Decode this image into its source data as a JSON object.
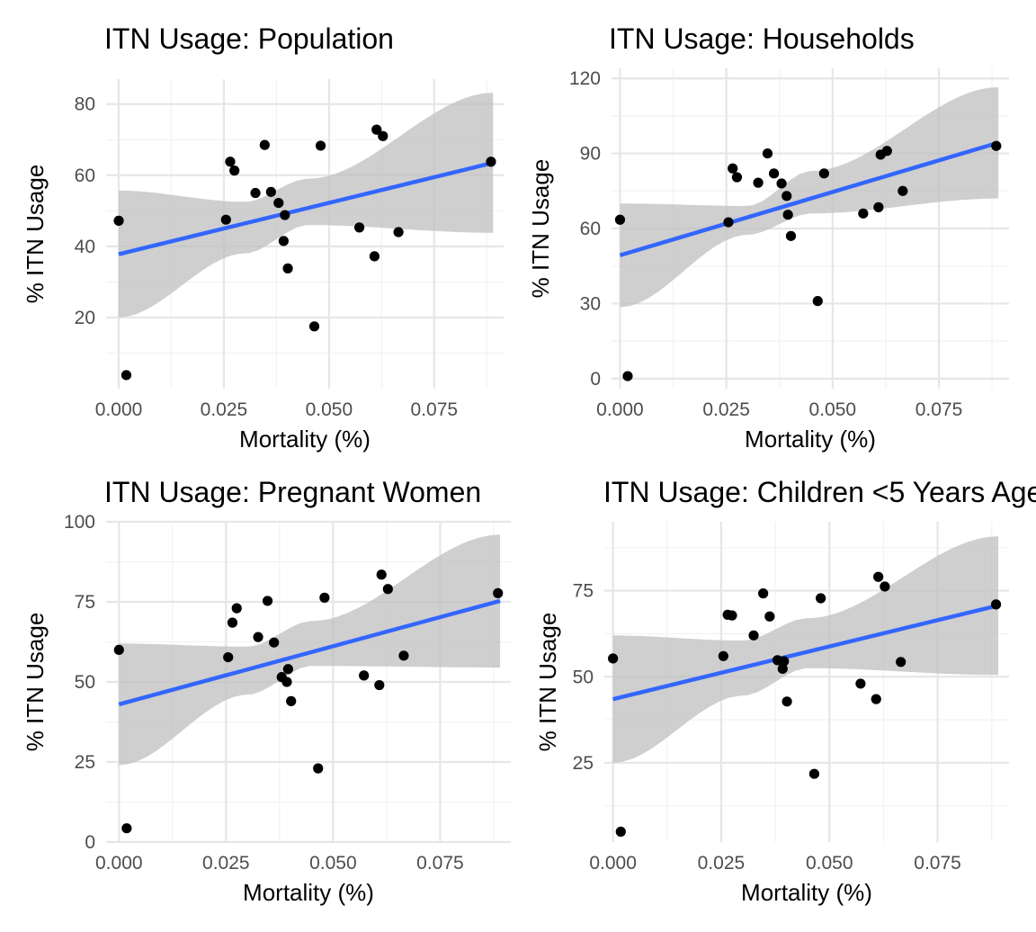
{
  "chart_data": [
    {
      "type": "scatter",
      "title": "ITN Usage: Population",
      "xlabel": "Mortality (%)",
      "ylabel": "% ITN Usage",
      "xlim": [
        -0.003,
        0.0915
      ],
      "ylim": [
        0,
        87
      ],
      "xticks": [
        0.0,
        0.025,
        0.05,
        0.075
      ],
      "xtick_labels": [
        "0.000",
        "0.025",
        "0.050",
        "0.075"
      ],
      "yticks": [
        20,
        40,
        60,
        80
      ],
      "ytick_labels": [
        "20",
        "40",
        "60",
        "80"
      ],
      "grid": true,
      "points": [
        {
          "x": 0.0,
          "y": 47.2
        },
        {
          "x": 0.0018,
          "y": 3.8
        },
        {
          "x": 0.0255,
          "y": 47.5
        },
        {
          "x": 0.0265,
          "y": 63.8
        },
        {
          "x": 0.0275,
          "y": 61.3
        },
        {
          "x": 0.0325,
          "y": 55.0
        },
        {
          "x": 0.0347,
          "y": 68.5
        },
        {
          "x": 0.0362,
          "y": 55.3
        },
        {
          "x": 0.038,
          "y": 52.2
        },
        {
          "x": 0.0392,
          "y": 41.5
        },
        {
          "x": 0.0395,
          "y": 48.8
        },
        {
          "x": 0.0402,
          "y": 33.8
        },
        {
          "x": 0.0465,
          "y": 17.5
        },
        {
          "x": 0.048,
          "y": 68.3
        },
        {
          "x": 0.0572,
          "y": 45.3
        },
        {
          "x": 0.0608,
          "y": 37.2
        },
        {
          "x": 0.0613,
          "y": 72.8
        },
        {
          "x": 0.0628,
          "y": 71.0
        },
        {
          "x": 0.0665,
          "y": 44.0
        },
        {
          "x": 0.0885,
          "y": 63.8
        }
      ],
      "fit": {
        "x0": 0.0,
        "y0": 37.8,
        "x1": 0.089,
        "y1": 63.5
      },
      "band": {
        "upper": [
          55.7,
          52.5,
          59.0,
          83.2
        ],
        "lower": [
          20.0,
          38.0,
          46.0,
          43.8
        ]
      }
    },
    {
      "type": "scatter",
      "title": "ITN Usage: Households",
      "xlabel": "Mortality (%)",
      "ylabel": "% ITN Usage",
      "xlim": [
        -0.002,
        0.0915
      ],
      "ylim": [
        -4,
        124
      ],
      "xticks": [
        0.0,
        0.025,
        0.05,
        0.075
      ],
      "xtick_labels": [
        "0.000",
        "0.025",
        "0.050",
        "0.075"
      ],
      "yticks": [
        0,
        30,
        60,
        90,
        120
      ],
      "ytick_labels": [
        "0",
        "30",
        "60",
        "90",
        "120"
      ],
      "grid": true,
      "points": [
        {
          "x": 0.0,
          "y": 63.5
        },
        {
          "x": 0.0018,
          "y": 1.0
        },
        {
          "x": 0.0255,
          "y": 62.5
        },
        {
          "x": 0.0265,
          "y": 84.0
        },
        {
          "x": 0.0275,
          "y": 80.5
        },
        {
          "x": 0.0325,
          "y": 78.3
        },
        {
          "x": 0.0347,
          "y": 90.0
        },
        {
          "x": 0.0362,
          "y": 82.0
        },
        {
          "x": 0.038,
          "y": 78.0
        },
        {
          "x": 0.0392,
          "y": 73.0
        },
        {
          "x": 0.0395,
          "y": 65.5
        },
        {
          "x": 0.0402,
          "y": 57.0
        },
        {
          "x": 0.0465,
          "y": 31.0
        },
        {
          "x": 0.048,
          "y": 82.0
        },
        {
          "x": 0.0572,
          "y": 66.0
        },
        {
          "x": 0.0608,
          "y": 68.5
        },
        {
          "x": 0.0613,
          "y": 89.5
        },
        {
          "x": 0.0628,
          "y": 91.0
        },
        {
          "x": 0.0665,
          "y": 75.0
        },
        {
          "x": 0.0885,
          "y": 93.0
        }
      ],
      "fit": {
        "x0": 0.0,
        "y0": 49.3,
        "x1": 0.089,
        "y1": 94.3
      },
      "band": {
        "upper": [
          70.0,
          69.0,
          83.0,
          116.5
        ],
        "lower": [
          28.5,
          57.5,
          66.0,
          72.0
        ]
      }
    },
    {
      "type": "scatter",
      "title": "ITN Usage: Pregnant Women",
      "xlabel": "Mortality (%)",
      "ylabel": "% ITN Usage",
      "xlim": [
        -0.003,
        0.0915
      ],
      "ylim": [
        0,
        100
      ],
      "xticks": [
        0.0,
        0.025,
        0.05,
        0.075
      ],
      "xtick_labels": [
        "0.000",
        "0.025",
        "0.050",
        "0.075"
      ],
      "yticks": [
        0,
        25,
        50,
        75,
        100
      ],
      "ytick_labels": [
        "0",
        "25",
        "50",
        "75",
        "100"
      ],
      "grid": true,
      "points": [
        {
          "x": 0.0,
          "y": 60.0
        },
        {
          "x": 0.0018,
          "y": 4.3
        },
        {
          "x": 0.0255,
          "y": 57.7
        },
        {
          "x": 0.0265,
          "y": 68.5
        },
        {
          "x": 0.0275,
          "y": 73.0
        },
        {
          "x": 0.0325,
          "y": 64.0
        },
        {
          "x": 0.0347,
          "y": 75.3
        },
        {
          "x": 0.0362,
          "y": 62.3
        },
        {
          "x": 0.038,
          "y": 51.5
        },
        {
          "x": 0.0392,
          "y": 50.0
        },
        {
          "x": 0.0395,
          "y": 54.0
        },
        {
          "x": 0.0402,
          "y": 44.0
        },
        {
          "x": 0.0465,
          "y": 23.0
        },
        {
          "x": 0.048,
          "y": 76.3
        },
        {
          "x": 0.0572,
          "y": 52.0
        },
        {
          "x": 0.0608,
          "y": 49.0
        },
        {
          "x": 0.0613,
          "y": 83.5
        },
        {
          "x": 0.0628,
          "y": 79.0
        },
        {
          "x": 0.0665,
          "y": 58.2
        },
        {
          "x": 0.0885,
          "y": 77.7
        }
      ],
      "fit": {
        "x0": 0.0,
        "y0": 43.0,
        "x1": 0.089,
        "y1": 75.3
      },
      "band": {
        "upper": [
          62.0,
          61.0,
          69.0,
          96.0
        ],
        "lower": [
          24.0,
          46.0,
          55.0,
          54.5
        ]
      }
    },
    {
      "type": "scatter",
      "title": "ITN Usage: Children <5 Years Age",
      "xlabel": "Mortality (%)",
      "ylabel": "% ITN Usage",
      "xlim": [
        -0.002,
        0.0915
      ],
      "ylim": [
        2,
        95
      ],
      "xticks": [
        0.0,
        0.025,
        0.05,
        0.075
      ],
      "xtick_labels": [
        "0.000",
        "0.025",
        "0.050",
        "0.075"
      ],
      "yticks": [
        25,
        50,
        75
      ],
      "ytick_labels": [
        "25",
        "50",
        "75"
      ],
      "grid": true,
      "points": [
        {
          "x": 0.0,
          "y": 55.3
        },
        {
          "x": 0.0018,
          "y": 5.0
        },
        {
          "x": 0.0255,
          "y": 56.0
        },
        {
          "x": 0.0265,
          "y": 68.0
        },
        {
          "x": 0.0275,
          "y": 67.8
        },
        {
          "x": 0.0325,
          "y": 62.0
        },
        {
          "x": 0.0347,
          "y": 74.2
        },
        {
          "x": 0.0362,
          "y": 67.5
        },
        {
          "x": 0.038,
          "y": 54.8
        },
        {
          "x": 0.0392,
          "y": 52.3
        },
        {
          "x": 0.0395,
          "y": 54.5
        },
        {
          "x": 0.0402,
          "y": 42.8
        },
        {
          "x": 0.0465,
          "y": 21.8
        },
        {
          "x": 0.048,
          "y": 72.8
        },
        {
          "x": 0.0572,
          "y": 48.0
        },
        {
          "x": 0.0608,
          "y": 43.5
        },
        {
          "x": 0.0613,
          "y": 79.0
        },
        {
          "x": 0.0628,
          "y": 76.2
        },
        {
          "x": 0.0665,
          "y": 54.3
        },
        {
          "x": 0.0885,
          "y": 71.0
        }
      ],
      "fit": {
        "x0": 0.0,
        "y0": 43.5,
        "x1": 0.089,
        "y1": 70.7
      },
      "band": {
        "upper": [
          62.0,
          60.5,
          67.0,
          90.8
        ],
        "lower": [
          25.0,
          44.5,
          52.5,
          50.5
        ]
      }
    }
  ]
}
